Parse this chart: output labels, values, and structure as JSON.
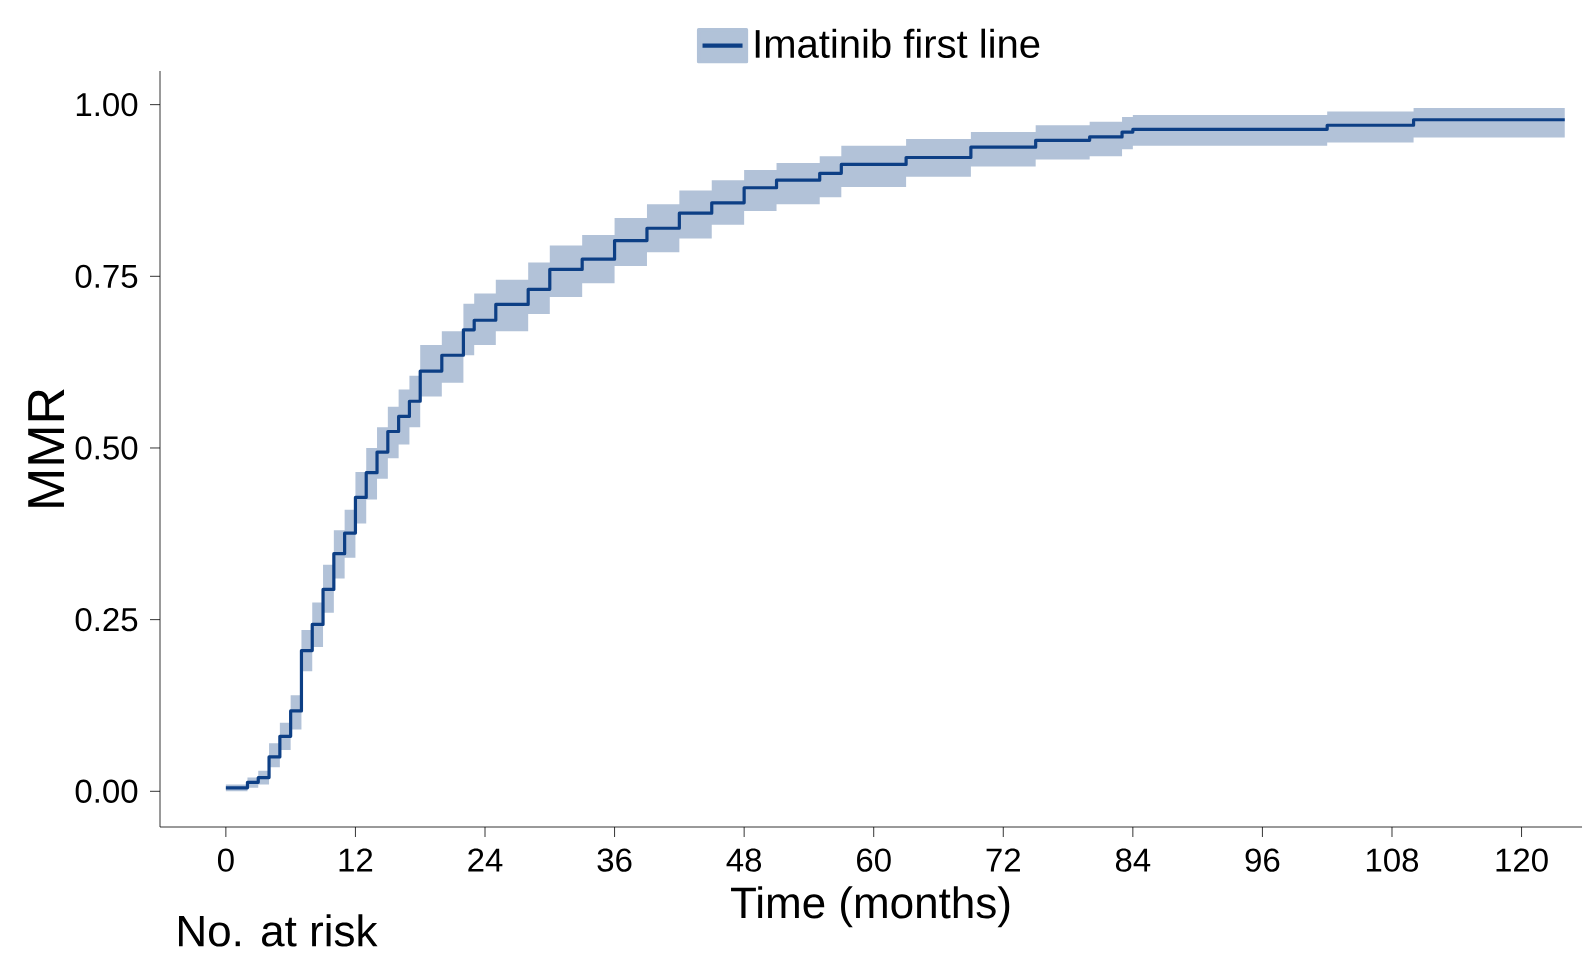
{
  "chart_data": {
    "type": "step",
    "xlabel": "Time (months)",
    "ylabel": "MMR",
    "x": [
      0,
      2,
      3,
      4,
      5,
      6,
      7,
      8,
      9,
      10,
      11,
      12,
      13,
      14,
      15,
      16,
      17,
      18,
      20,
      22,
      23,
      25,
      28,
      30,
      33,
      36,
      39,
      42,
      45,
      48,
      51,
      55,
      57,
      63,
      69,
      75,
      80,
      83,
      84,
      102,
      110,
      124
    ],
    "series": [
      {
        "name": "Imatinib first line",
        "color": "#0d3f85",
        "values": [
          0.005,
          0.013,
          0.02,
          0.05,
          0.08,
          0.117,
          0.205,
          0.243,
          0.294,
          0.346,
          0.376,
          0.428,
          0.464,
          0.494,
          0.524,
          0.546,
          0.568,
          0.612,
          0.635,
          0.672,
          0.686,
          0.709,
          0.731,
          0.76,
          0.775,
          0.802,
          0.82,
          0.842,
          0.857,
          0.879,
          0.89,
          0.9,
          0.913,
          0.923,
          0.938,
          0.948,
          0.953,
          0.96,
          0.964,
          0.97,
          0.978,
          0.978
        ],
        "lower": [
          0,
          0.005,
          0.01,
          0.035,
          0.06,
          0.09,
          0.175,
          0.21,
          0.26,
          0.31,
          0.34,
          0.39,
          0.425,
          0.455,
          0.485,
          0.505,
          0.53,
          0.575,
          0.595,
          0.635,
          0.65,
          0.67,
          0.695,
          0.72,
          0.74,
          0.765,
          0.785,
          0.805,
          0.825,
          0.845,
          0.855,
          0.865,
          0.88,
          0.895,
          0.91,
          0.92,
          0.925,
          0.935,
          0.94,
          0.945,
          0.952,
          0.952
        ],
        "upper": [
          0.01,
          0.02,
          0.03,
          0.07,
          0.1,
          0.14,
          0.235,
          0.275,
          0.33,
          0.38,
          0.41,
          0.465,
          0.5,
          0.53,
          0.56,
          0.585,
          0.605,
          0.65,
          0.67,
          0.71,
          0.725,
          0.745,
          0.77,
          0.795,
          0.81,
          0.835,
          0.855,
          0.875,
          0.89,
          0.905,
          0.915,
          0.925,
          0.94,
          0.95,
          0.96,
          0.97,
          0.975,
          0.982,
          0.985,
          0.99,
          0.995,
          0.995
        ]
      }
    ],
    "xlim": [
      -6.1,
      125.6
    ],
    "ylim": [
      -0.052,
      1.049
    ],
    "xticks": [
      0,
      12,
      24,
      36,
      48,
      60,
      72,
      84,
      96,
      108,
      120
    ],
    "yticks": [
      {
        "value": 0,
        "label": "0.00"
      },
      {
        "value": 0.25,
        "label": "0.25"
      },
      {
        "value": 0.5,
        "label": "0.50"
      },
      {
        "value": 0.75,
        "label": "0.75"
      },
      {
        "value": 1,
        "label": "1.00"
      }
    ],
    "legend": "top",
    "grid": false,
    "annotations": [
      "No. at risk"
    ]
  }
}
